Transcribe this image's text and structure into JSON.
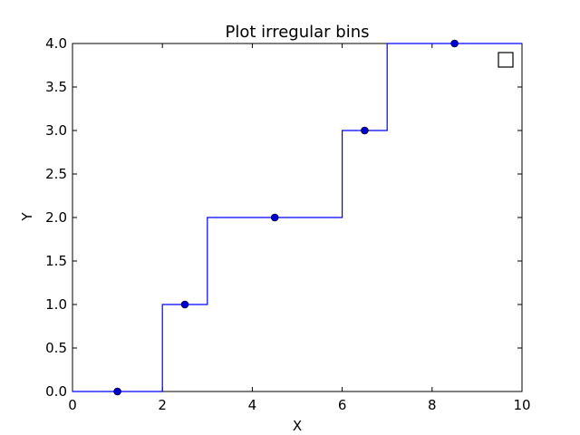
{
  "chart_data": {
    "type": "line",
    "title": "Plot irregular bins",
    "xlabel": "X",
    "ylabel": "Y",
    "xlim": [
      0,
      10
    ],
    "ylim": [
      0,
      4
    ],
    "x_ticks": [
      0,
      2,
      4,
      6,
      8,
      10
    ],
    "x_tick_labels": [
      "0",
      "2",
      "4",
      "6",
      "8",
      "10"
    ],
    "y_ticks": [
      0,
      0.5,
      1,
      1.5,
      2,
      2.5,
      3,
      3.5,
      4
    ],
    "y_tick_labels": [
      "0.0",
      "0.5",
      "1.0",
      "1.5",
      "2.0",
      "2.5",
      "3.0",
      "3.5",
      "4.0"
    ],
    "grid": false,
    "legend": {
      "position": "top-right",
      "entries": []
    },
    "series": [
      {
        "style": "step",
        "color": "#0000ff",
        "bin_edges": [
          0,
          2,
          3,
          6,
          7,
          10
        ],
        "values": [
          0,
          1,
          2,
          3,
          4
        ]
      },
      {
        "style": "markers",
        "color": "#0000cc",
        "x": [
          1,
          2.5,
          4.5,
          6.5,
          8.5
        ],
        "y": [
          0,
          1,
          2,
          3,
          4
        ]
      }
    ]
  }
}
